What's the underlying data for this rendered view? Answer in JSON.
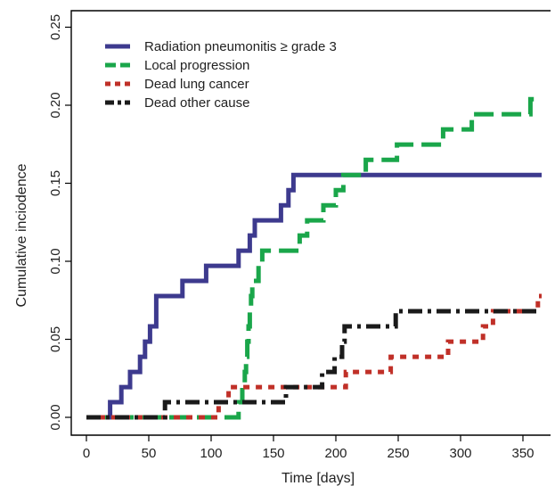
{
  "chart_data": {
    "type": "line",
    "step": true,
    "xlabel": "Time [days]",
    "ylabel": "Cumulative inciodence",
    "xlim": [
      0,
      365
    ],
    "ylim": [
      0,
      0.25
    ],
    "x_ticks": [
      0,
      50,
      100,
      150,
      200,
      250,
      300,
      350
    ],
    "x_tick_labels": [
      "0",
      "50",
      "100",
      "150",
      "200",
      "250",
      "300",
      "350"
    ],
    "y_ticks": [
      0,
      0.05,
      0.1,
      0.15,
      0.2,
      0.25
    ],
    "y_tick_labels": [
      "0.00",
      "0.05",
      "0.10",
      "0.15",
      "0.20",
      "0.25"
    ],
    "grid": false,
    "legend_position": "top-left",
    "series": [
      {
        "name": "Radiation pneumonitis ≥ grade 3",
        "color": "#3d3a8e",
        "dash": "solid",
        "points": [
          [
            0,
            0
          ],
          [
            19,
            0
          ],
          [
            19,
            0.0097
          ],
          [
            28,
            0.0097
          ],
          [
            28,
            0.0194
          ],
          [
            35,
            0.0194
          ],
          [
            35,
            0.0291
          ],
          [
            43,
            0.0291
          ],
          [
            43,
            0.0388
          ],
          [
            47,
            0.0388
          ],
          [
            47,
            0.0485
          ],
          [
            51,
            0.0485
          ],
          [
            51,
            0.0583
          ],
          [
            56,
            0.0583
          ],
          [
            56,
            0.0777
          ],
          [
            77,
            0.0777
          ],
          [
            77,
            0.0874
          ],
          [
            96,
            0.0874
          ],
          [
            96,
            0.0971
          ],
          [
            122,
            0.0971
          ],
          [
            122,
            0.1068
          ],
          [
            131,
            0.1068
          ],
          [
            131,
            0.1165
          ],
          [
            135,
            0.1165
          ],
          [
            135,
            0.1262
          ],
          [
            156,
            0.1262
          ],
          [
            156,
            0.1359
          ],
          [
            162,
            0.1359
          ],
          [
            162,
            0.1456
          ],
          [
            166,
            0.1456
          ],
          [
            166,
            0.1553
          ],
          [
            365,
            0.1553
          ]
        ]
      },
      {
        "name": "Local progression",
        "color": "#1aa64a",
        "dash": "long-dash",
        "points": [
          [
            0,
            0
          ],
          [
            122,
            0
          ],
          [
            122,
            0.0097
          ],
          [
            125,
            0.0097
          ],
          [
            125,
            0.0194
          ],
          [
            127,
            0.0194
          ],
          [
            127,
            0.0291
          ],
          [
            128,
            0.0291
          ],
          [
            128,
            0.0388
          ],
          [
            129,
            0.0388
          ],
          [
            129,
            0.0485
          ],
          [
            130,
            0.0485
          ],
          [
            130,
            0.0583
          ],
          [
            131,
            0.0583
          ],
          [
            131,
            0.068
          ],
          [
            132,
            0.068
          ],
          [
            132,
            0.0777
          ],
          [
            133,
            0.0777
          ],
          [
            133,
            0.0874
          ],
          [
            138,
            0.0874
          ],
          [
            138,
            0.0971
          ],
          [
            141,
            0.0971
          ],
          [
            141,
            0.1068
          ],
          [
            171,
            0.1068
          ],
          [
            171,
            0.1165
          ],
          [
            177,
            0.1165
          ],
          [
            177,
            0.1262
          ],
          [
            190,
            0.1262
          ],
          [
            190,
            0.1359
          ],
          [
            200,
            0.1359
          ],
          [
            200,
            0.1456
          ],
          [
            206,
            0.1456
          ],
          [
            206,
            0.1553
          ],
          [
            224,
            0.1553
          ],
          [
            224,
            0.165
          ],
          [
            249,
            0.165
          ],
          [
            249,
            0.1748
          ],
          [
            286,
            0.1748
          ],
          [
            286,
            0.1845
          ],
          [
            309,
            0.1845
          ],
          [
            309,
            0.1942
          ],
          [
            356,
            0.1942
          ],
          [
            356,
            0.2039
          ],
          [
            365,
            0.2039
          ]
        ]
      },
      {
        "name": "Dead lung cancer",
        "color": "#c03028",
        "dash": "dotted",
        "points": [
          [
            0,
            0
          ],
          [
            106,
            0
          ],
          [
            106,
            0.0097
          ],
          [
            114,
            0.0097
          ],
          [
            114,
            0.0194
          ],
          [
            134,
            0.0194
          ],
          [
            134,
            0.0194
          ],
          [
            208,
            0.0194
          ],
          [
            208,
            0.0291
          ],
          [
            244,
            0.0291
          ],
          [
            244,
            0.0388
          ],
          [
            290,
            0.0388
          ],
          [
            290,
            0.0485
          ],
          [
            318,
            0.0485
          ],
          [
            318,
            0.0583
          ],
          [
            326,
            0.0583
          ],
          [
            326,
            0.068
          ],
          [
            362,
            0.068
          ],
          [
            362,
            0.0777
          ],
          [
            365,
            0.0777
          ]
        ]
      },
      {
        "name": "Dead other cause",
        "color": "#1a1a1a",
        "dash": "dash-dot",
        "points": [
          [
            0,
            0
          ],
          [
            63,
            0
          ],
          [
            63,
            0.0097
          ],
          [
            160,
            0.0097
          ],
          [
            160,
            0.0194
          ],
          [
            189,
            0.0194
          ],
          [
            189,
            0.0291
          ],
          [
            199,
            0.0291
          ],
          [
            199,
            0.0388
          ],
          [
            205,
            0.0388
          ],
          [
            205,
            0.0485
          ],
          [
            207,
            0.0485
          ],
          [
            207,
            0.0583
          ],
          [
            248,
            0.0583
          ],
          [
            248,
            0.068
          ],
          [
            365,
            0.068
          ]
        ]
      }
    ]
  }
}
